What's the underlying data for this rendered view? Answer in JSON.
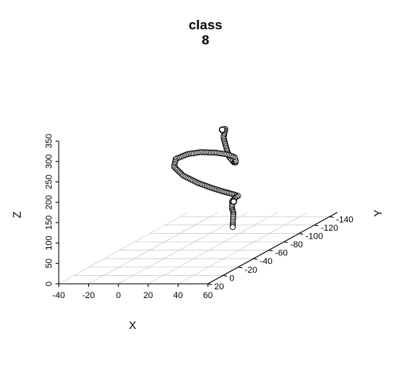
{
  "chart_data": {
    "type": "scatter",
    "projection": "3d",
    "title": [
      "class",
      "8"
    ],
    "xlabel": "X",
    "ylabel": "Y",
    "zlabel": "Z",
    "xlim": [
      -40,
      60
    ],
    "ylim": [
      -150,
      20
    ],
    "zlim": [
      0,
      350
    ],
    "x_ticks": [
      "-40",
      "-20",
      "0",
      "20",
      "40",
      "60"
    ],
    "y_ticks": [
      "-140",
      "-120",
      "-100",
      "-80",
      "-60",
      "-40",
      "-20",
      "0",
      "20"
    ],
    "z_ticks": [
      "0",
      "50",
      "100",
      "150",
      "200",
      "250",
      "300",
      "350"
    ],
    "grid": true,
    "marker": "open-circle",
    "marker_color": "#000000",
    "path_xyz": [
      [
        38,
        -46,
        312
      ],
      [
        44,
        -32,
        305
      ],
      [
        52,
        -20,
        292
      ],
      [
        57,
        -14,
        276
      ],
      [
        58,
        -18,
        259
      ],
      [
        52,
        -32,
        244
      ],
      [
        43,
        -50,
        230
      ],
      [
        32,
        -70,
        218
      ],
      [
        18,
        -88,
        206
      ],
      [
        2,
        -104,
        194
      ],
      [
        -14,
        -116,
        183
      ],
      [
        -26,
        -122,
        172
      ],
      [
        -34,
        -122,
        160
      ],
      [
        -32,
        -116,
        147
      ],
      [
        -22,
        -108,
        134
      ],
      [
        -8,
        -100,
        124
      ],
      [
        4,
        -96,
        115
      ],
      [
        12,
        -96,
        106
      ],
      [
        16,
        -100,
        96
      ],
      [
        16,
        -106,
        86
      ],
      [
        12,
        -110,
        77
      ],
      [
        10,
        -110,
        69
      ],
      [
        12,
        -106,
        64
      ],
      [
        16,
        -98,
        63
      ],
      [
        22,
        -88,
        64
      ],
      [
        28,
        -76,
        66
      ],
      [
        34,
        -64,
        69
      ],
      [
        40,
        -52,
        72
      ],
      [
        45,
        -42,
        75
      ]
    ],
    "highlighted_points": [
      [
        37,
        -44,
        312
      ],
      [
        12,
        -108,
        70
      ]
    ]
  }
}
